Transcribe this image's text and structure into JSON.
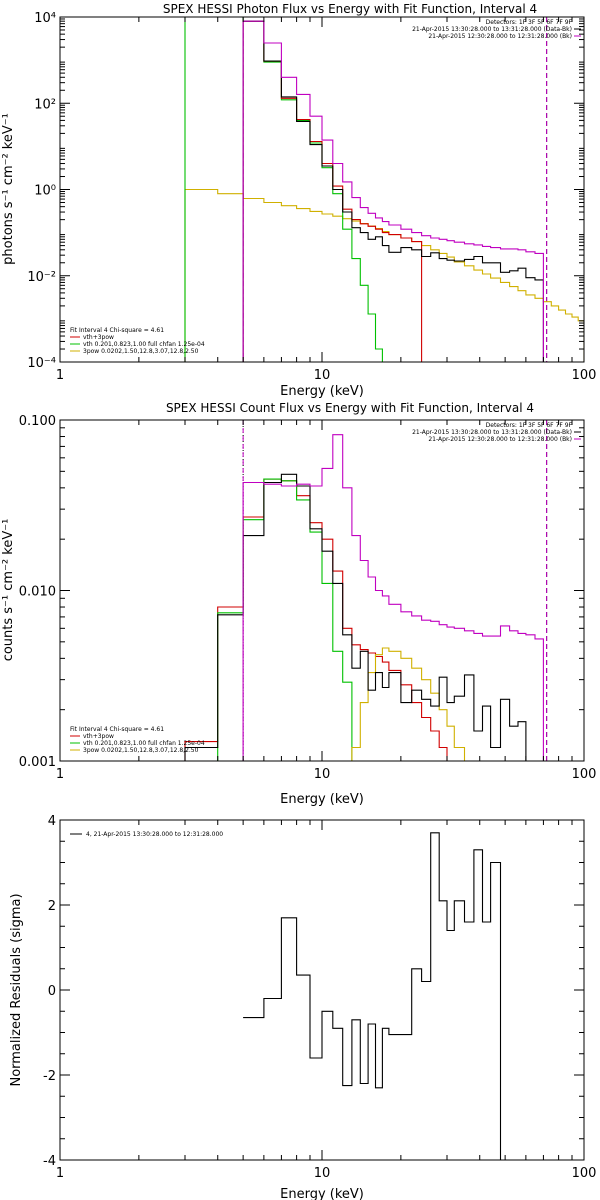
{
  "figure": {
    "background": "#ffffff",
    "foreground": "#000000"
  },
  "chart_data": [
    {
      "type": "line",
      "title": "SPEX HESSI Photon Flux vs Energy with Fit Function, Interval 4",
      "xlabel": "Energy (keV)",
      "ylabel": "photons s⁻¹ cm⁻² keV⁻¹",
      "xscale": "log",
      "yscale": "log",
      "xlim": [
        1,
        100
      ],
      "ylim": [
        0.0001,
        10000
      ],
      "xticks": [
        1,
        10,
        100
      ],
      "xtick_labels": [
        "1",
        "10",
        "100"
      ],
      "yticks": [
        0.0001,
        0.01,
        1,
        100,
        10000
      ],
      "ytick_labels": [
        "10⁻⁴",
        "10⁻²",
        "10⁰",
        "10²",
        "10⁴"
      ],
      "header_legend": [
        {
          "text": "Detectors: 1F 3F 5F 6F 7F 9F",
          "color": "#000000"
        },
        {
          "text": "21-Apr-2015 13:30:28.000 to 13:31:28.000 (Data-Bk)",
          "color": "#000000"
        },
        {
          "text": "21-Apr-2015 12:30:28.000 to 12:31:28.000 (Bk)",
          "color": "#c000c0"
        }
      ],
      "fit_legend": [
        {
          "text": "Fit Interval  4   Chi-square = 4.61",
          "color": "#000000"
        },
        {
          "text": "vth+3pow",
          "color": "#d00000"
        },
        {
          "text": "vth 0.201,0.823,1.00  full chfan 1.25e-04",
          "color": "#00c000"
        },
        {
          "text": "3pow 0.0202,1.50,12.8,3.07,12.8,2.50",
          "color": "#d0b000"
        }
      ],
      "vlines": [
        {
          "x": 5.0,
          "style": "dashed",
          "color": "#c000c0"
        },
        {
          "x": 72,
          "style": "dashed",
          "color": "#000000"
        },
        {
          "x": 72,
          "style": "dashed",
          "color": "#c000c0"
        }
      ],
      "edges": [
        3,
        4,
        5,
        6,
        7,
        8,
        9,
        10,
        11,
        12,
        13,
        14,
        15,
        16,
        17,
        18,
        20,
        22,
        24,
        26,
        28,
        30,
        32,
        35,
        38,
        41,
        44,
        48,
        52,
        56,
        60,
        65,
        70,
        75,
        80,
        85,
        90,
        95,
        100
      ],
      "series": [
        {
          "color": "#d0b000",
          "values": [
            1.0,
            0.8,
            0.62,
            0.5,
            0.42,
            0.36,
            0.31,
            0.27,
            0.24,
            0.21,
            0.185,
            0.162,
            0.142,
            0.124,
            0.106,
            0.09,
            0.075,
            0.062,
            0.05,
            0.04,
            0.033,
            0.027,
            0.021,
            0.017,
            0.0135,
            0.011,
            0.0088,
            0.007,
            0.0056,
            0.0045,
            0.0036,
            0.003,
            0.0025,
            0.002,
            0.0016,
            0.0013,
            0.0011,
            0.0009
          ]
        },
        {
          "color": "#00c000",
          "values": [
            10000,
            10000,
            8000,
            900,
            120,
            40,
            12,
            3.2,
            0.8,
            0.12,
            0.025,
            0.006,
            0.0013,
            0.0002,
            3e-05,
            null,
            null,
            null,
            null,
            null,
            null,
            null,
            null,
            null,
            null,
            null,
            null,
            null,
            null,
            null,
            null,
            null,
            null,
            null,
            null,
            null,
            null,
            null
          ]
        },
        {
          "color": "#d00000",
          "values": [
            null,
            null,
            8000,
            950,
            130,
            42,
            13,
            4.0,
            1.2,
            0.35,
            0.2,
            0.16,
            0.14,
            0.12,
            0.1,
            0.09,
            0.075,
            0.062,
            null,
            null,
            null,
            null,
            null,
            null,
            null,
            null,
            null,
            null,
            null,
            null,
            null,
            null,
            null,
            null,
            null,
            null,
            null,
            null
          ]
        },
        {
          "color": "#000000",
          "values": [
            null,
            null,
            8000,
            950,
            140,
            38,
            11,
            3.5,
            1.0,
            0.3,
            0.13,
            0.1,
            0.07,
            0.08,
            0.05,
            0.035,
            0.045,
            0.04,
            0.028,
            0.034,
            0.025,
            0.023,
            0.022,
            0.024,
            0.028,
            0.02,
            0.02,
            0.012,
            0.013,
            0.015,
            0.009,
            0.008,
            null,
            null,
            null,
            null,
            null,
            null
          ]
        },
        {
          "color": "#c000c0",
          "values": [
            null,
            null,
            8000,
            2500,
            400,
            160,
            50,
            14,
            4.0,
            1.5,
            0.65,
            0.38,
            0.28,
            0.22,
            0.18,
            0.15,
            0.12,
            0.1,
            0.085,
            0.075,
            0.07,
            0.065,
            0.06,
            0.055,
            0.052,
            0.048,
            0.045,
            0.042,
            0.042,
            0.04,
            0.036,
            0.033,
            null,
            null,
            null,
            null,
            null,
            null
          ]
        }
      ]
    },
    {
      "type": "line",
      "title": "SPEX HESSI Count Flux vs Energy with Fit Function, Interval 4",
      "xlabel": "Energy (keV)",
      "ylabel": "counts s⁻¹ cm⁻² keV⁻¹",
      "xscale": "log",
      "yscale": "log",
      "xlim": [
        1,
        100
      ],
      "ylim": [
        0.001,
        0.1
      ],
      "xticks": [
        1,
        10,
        100
      ],
      "xtick_labels": [
        "1",
        "10",
        "100"
      ],
      "yticks": [
        0.001,
        0.01,
        0.1
      ],
      "ytick_labels": [
        "0.001",
        "0.010",
        "0.100"
      ],
      "header_legend": [
        {
          "text": "Detectors: 1F 3F 5F 6F 7F 9F",
          "color": "#000000"
        },
        {
          "text": "21-Apr-2015 13:30:28.000 to 13:31:28.000 (Data-Bk)",
          "color": "#000000"
        },
        {
          "text": "21-Apr-2015 12:30:28.000 to 12:31:28.000 (Bk)",
          "color": "#c000c0"
        }
      ],
      "fit_legend": [
        {
          "text": "Fit Interval  4   Chi-square = 4.61",
          "color": "#000000"
        },
        {
          "text": "vth+3pow",
          "color": "#d00000"
        },
        {
          "text": "vth 0.201,0.823,1.00  full chfan 1.25e-04",
          "color": "#00c000"
        },
        {
          "text": "3pow 0.0202,1.50,12.8,3.07,12.8,2.50",
          "color": "#d0b000"
        }
      ],
      "vlines": [
        {
          "x": 5.0,
          "style": "dotted",
          "color": "#000000"
        },
        {
          "x": 5.0,
          "style": "dashed",
          "color": "#c000c0"
        },
        {
          "x": 72,
          "style": "dashed",
          "color": "#000000"
        },
        {
          "x": 72,
          "style": "dashed",
          "color": "#c000c0"
        }
      ],
      "edges": [
        3,
        4,
        5,
        6,
        7,
        8,
        9,
        10,
        11,
        12,
        13,
        14,
        15,
        16,
        17,
        18,
        20,
        22,
        24,
        26,
        28,
        30,
        32,
        35,
        38,
        41,
        44,
        48,
        52,
        56,
        60,
        65,
        70,
        75
      ],
      "series": [
        {
          "color": "#d00000",
          "values": [
            0.0013,
            0.008,
            0.027,
            0.045,
            0.044,
            0.036,
            0.025,
            0.02,
            0.013,
            0.006,
            0.0048,
            0.0045,
            0.0043,
            0.0041,
            0.0038,
            0.0034,
            0.0028,
            0.0022,
            0.0018,
            0.0015,
            0.0012,
            0.001,
            null,
            null,
            null,
            null,
            null,
            null,
            null,
            null,
            null,
            null,
            null
          ]
        },
        {
          "color": "#00c000",
          "values": [
            null,
            0.0074,
            0.026,
            0.045,
            0.044,
            0.034,
            0.022,
            0.011,
            0.0044,
            0.0029,
            0.001,
            null,
            null,
            null,
            null,
            null,
            null,
            null,
            null,
            null,
            null,
            null,
            null,
            null,
            null,
            null,
            null,
            null,
            null,
            null,
            null,
            null,
            null
          ]
        },
        {
          "color": "#d0b000",
          "values": [
            null,
            null,
            null,
            null,
            null,
            null,
            null,
            null,
            null,
            null,
            0.0012,
            0.0022,
            0.0033,
            0.0042,
            0.0046,
            0.0044,
            0.004,
            0.0035,
            0.003,
            0.0025,
            0.002,
            0.0016,
            0.0012,
            0.001,
            null,
            null,
            null,
            null,
            null,
            null,
            null,
            null,
            null
          ]
        },
        {
          "color": "#000000",
          "values": [
            0.0012,
            0.0072,
            0.021,
            0.043,
            0.048,
            0.041,
            0.023,
            0.017,
            0.011,
            0.0055,
            0.0035,
            0.0044,
            0.0026,
            0.0033,
            0.0027,
            0.0033,
            0.0022,
            0.0026,
            0.0023,
            0.0021,
            0.0031,
            0.0022,
            0.0024,
            0.0032,
            0.0015,
            0.0021,
            0.0012,
            0.0023,
            0.0016,
            0.0017,
            0.001,
            null,
            null
          ]
        },
        {
          "color": "#c000c0",
          "values": [
            null,
            null,
            0.043,
            0.042,
            0.041,
            0.042,
            0.041,
            0.052,
            0.082,
            0.04,
            0.021,
            0.015,
            0.012,
            0.01,
            0.0093,
            0.0083,
            0.0075,
            0.0071,
            0.0067,
            0.0066,
            0.0063,
            0.0061,
            0.006,
            0.0058,
            0.0056,
            0.0054,
            0.0054,
            0.0062,
            0.0058,
            0.0056,
            0.0055,
            0.0052,
            null
          ]
        }
      ]
    },
    {
      "type": "line",
      "title": "",
      "xlabel": "Energy (keV)",
      "ylabel": "Normalized Residuals (sigma)",
      "xscale": "log",
      "yscale": "linear",
      "xlim": [
        1,
        100
      ],
      "ylim": [
        -4,
        4
      ],
      "xticks": [
        1,
        10,
        100
      ],
      "xtick_labels": [
        "1",
        "10",
        "100"
      ],
      "yticks": [
        -4,
        -2,
        0,
        2,
        4
      ],
      "ytick_labels": [
        "-4",
        "-2",
        "0",
        "2",
        "4"
      ],
      "legend": [
        {
          "text": "4, 21-Apr-2015 13:30:28.000 to 12:31:28.000",
          "color": "#000000"
        }
      ],
      "edges": [
        5,
        6,
        7,
        8,
        9,
        10,
        11,
        12,
        13,
        14,
        15,
        16,
        17,
        18,
        20,
        22,
        24,
        26,
        28,
        30,
        32,
        35,
        38,
        41,
        44,
        48,
        52,
        56,
        60,
        65,
        70,
        75
      ],
      "series": [
        {
          "color": "#000000",
          "values": [
            -0.65,
            -0.2,
            1.7,
            0.35,
            -1.6,
            -0.5,
            -0.9,
            -2.25,
            -0.7,
            -2.2,
            -0.8,
            -2.3,
            -0.9,
            -1.05,
            -1.05,
            0.5,
            0.2,
            3.7,
            2.1,
            1.4,
            2.1,
            1.6,
            3.3,
            1.6,
            3.0
          ]
        }
      ]
    }
  ]
}
